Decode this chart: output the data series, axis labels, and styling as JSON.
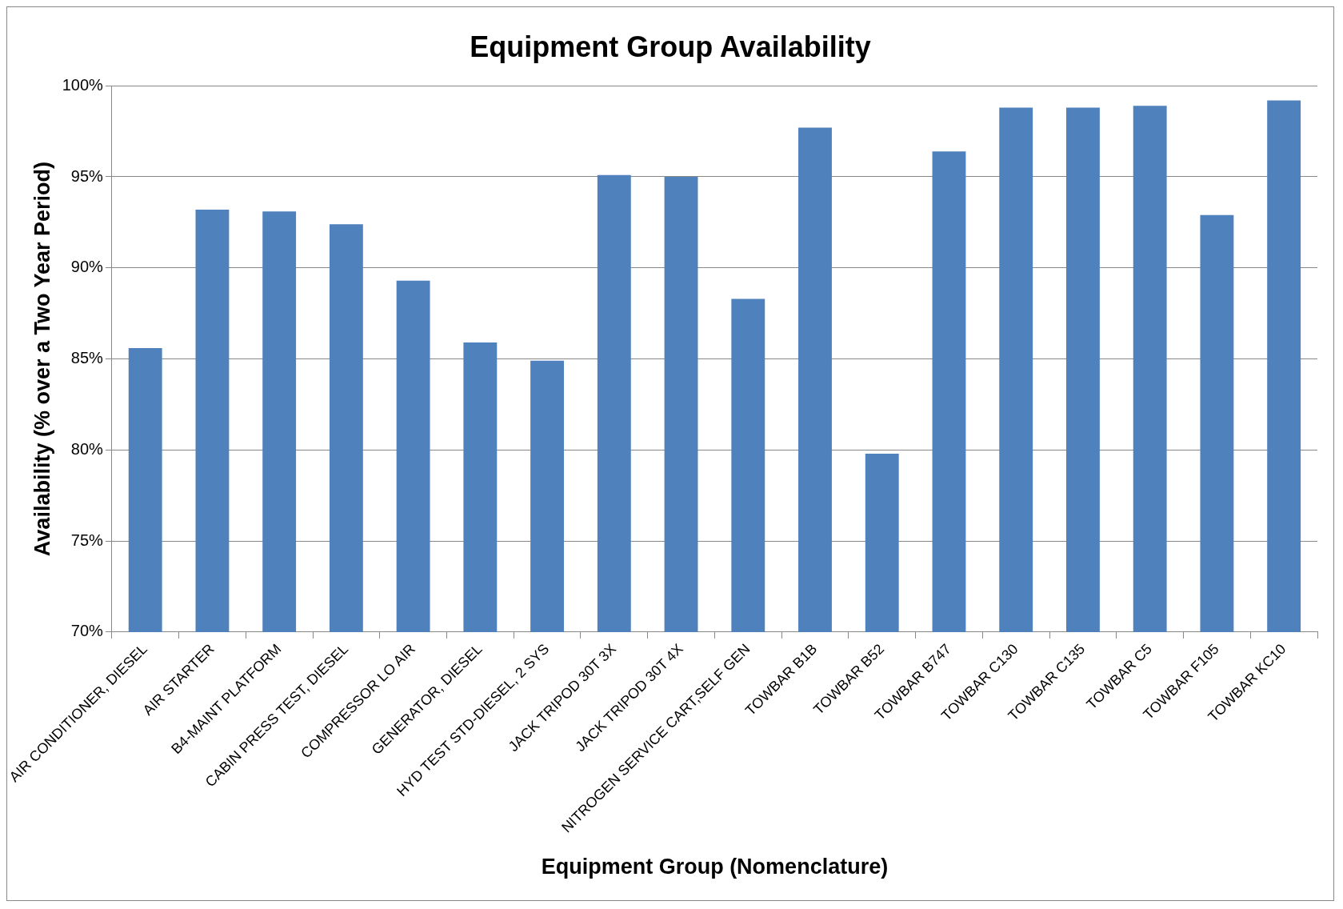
{
  "chart_data": {
    "type": "bar",
    "title": "Equipment Group Availability",
    "xlabel": "Equipment Group (Nomenclature)",
    "ylabel": "Availability (% over a Two Year Period)",
    "categories": [
      "AIR CONDITIONER, DIESEL",
      "AIR STARTER",
      "B4-MAINT PLATFORM",
      "CABIN PRESS TEST, DIESEL",
      "COMPRESSOR LO AIR",
      "GENERATOR, DIESEL",
      "HYD TEST STD-DIESEL, 2 SYS",
      "JACK TRIPOD 30T 3X",
      "JACK TRIPOD 30T 4X",
      "NITROGEN SERVICE CART,SELF GEN",
      "TOWBAR B1B",
      "TOWBAR B52",
      "TOWBAR B747",
      "TOWBAR C130",
      "TOWBAR C135",
      "TOWBAR C5",
      "TOWBAR F105",
      "TOWBAR KC10"
    ],
    "values": [
      85.6,
      93.2,
      93.1,
      92.4,
      89.3,
      85.9,
      84.9,
      95.1,
      95.0,
      88.3,
      97.7,
      79.8,
      96.4,
      98.8,
      98.8,
      98.9,
      92.9,
      99.2
    ],
    "color": "#4f81bd",
    "ylim": [
      70,
      100
    ],
    "yticks": [
      {
        "value": 70,
        "label": "70%"
      },
      {
        "value": 75,
        "label": "75%"
      },
      {
        "value": 80,
        "label": "80%"
      },
      {
        "value": 85,
        "label": "85%"
      },
      {
        "value": 90,
        "label": "90%"
      },
      {
        "value": 95,
        "label": "95%"
      },
      {
        "value": 100,
        "label": "100%"
      }
    ],
    "grid": "y",
    "legend": false
  }
}
